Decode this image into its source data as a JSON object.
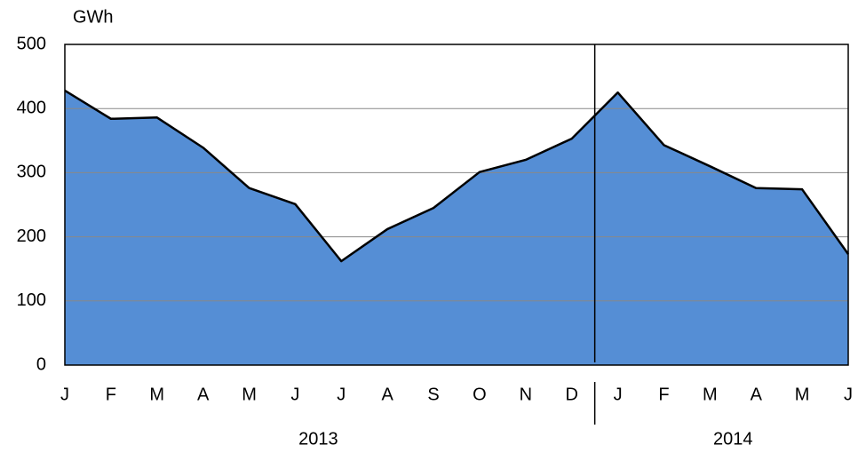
{
  "chart_data": {
    "type": "area",
    "y_label": "GWh",
    "categories": [
      "J",
      "F",
      "M",
      "A",
      "M",
      "J",
      "J",
      "A",
      "S",
      "O",
      "N",
      "D",
      "J",
      "F",
      "M",
      "A",
      "M",
      "J"
    ],
    "x_groups": [
      {
        "label": "2013",
        "count": 12
      },
      {
        "label": "2014",
        "count": 6
      }
    ],
    "values": [
      428,
      384,
      386,
      339,
      276,
      251,
      162,
      212,
      245,
      301,
      320,
      353,
      425,
      343,
      310,
      276,
      274,
      173
    ],
    "color": "#558ed5",
    "ylim": [
      0,
      500
    ],
    "yticks": [
      0,
      100,
      200,
      300,
      400,
      500
    ],
    "grid": true
  }
}
